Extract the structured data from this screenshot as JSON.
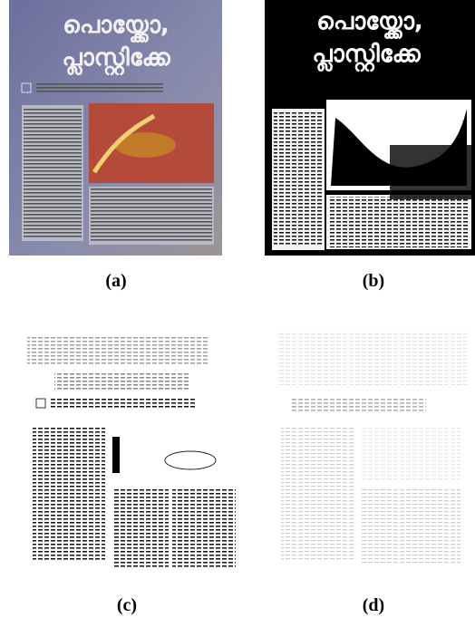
{
  "figure": {
    "headline": [
      "പൊയ്ക്കോ,",
      "പ്ലാസ്റ്റിക്കേ"
    ],
    "panels": [
      {
        "label": "(a)"
      },
      {
        "label": "(b)"
      },
      {
        "label": "(c)"
      },
      {
        "label": "(d)"
      }
    ]
  }
}
